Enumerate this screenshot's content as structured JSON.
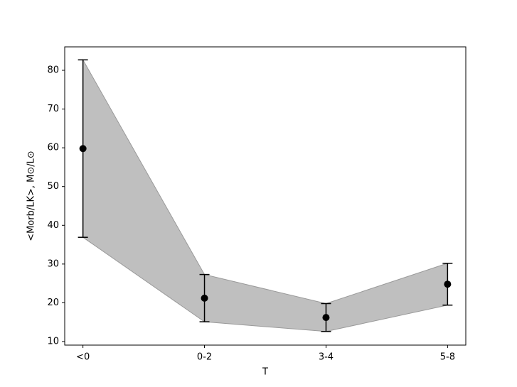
{
  "chart_data": {
    "type": "errorbar",
    "categories": [
      "<0",
      "0-2",
      "3-4",
      "5-8"
    ],
    "values": [
      59.8,
      21.2,
      16.2,
      24.8
    ],
    "errors": [
      22.9,
      6.1,
      3.6,
      5.4
    ],
    "color": "#000000",
    "band_color": "#bfbfbf",
    "xlabel": "T",
    "ylabel": "<Morb/LK>, M⊙/L⊙",
    "xlim": [
      -0.15,
      3.15
    ],
    "ylim": [
      9.08,
      86.05
    ],
    "yticks": [
      10,
      20,
      30,
      40,
      50,
      60,
      70,
      80
    ],
    "grid": false
  }
}
